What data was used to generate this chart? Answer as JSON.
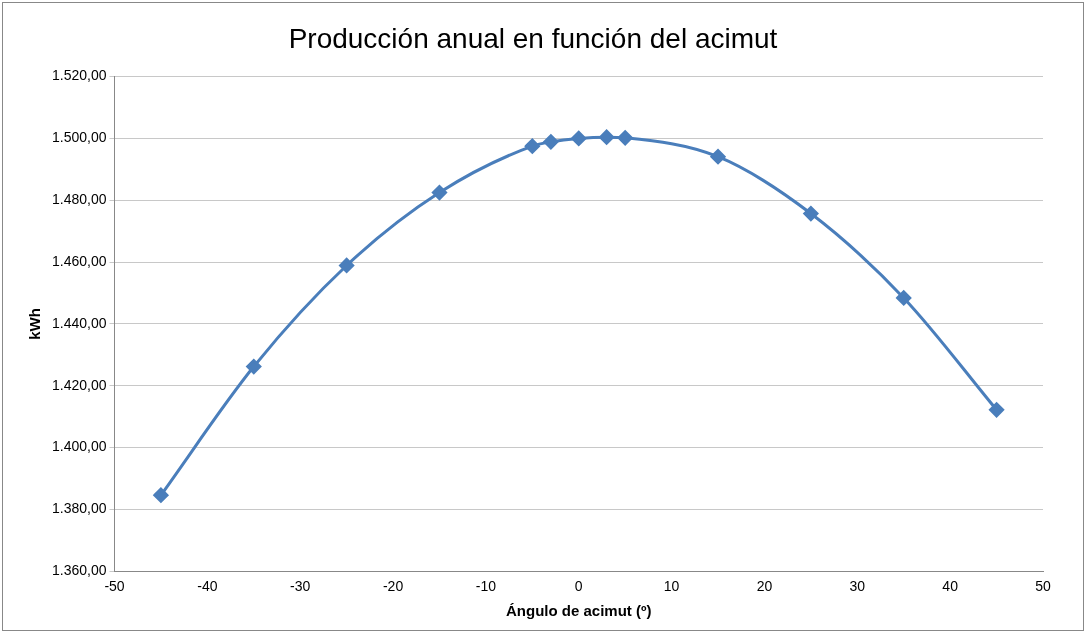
{
  "chart_data": {
    "type": "line",
    "title": "Producción anual en función del acimut",
    "xlabel": "Ángulo de acimut (º)",
    "ylabel": "kWh",
    "x": [
      -45,
      -35,
      -25,
      -15,
      -5,
      -3,
      0,
      3,
      5,
      15,
      25,
      35,
      45
    ],
    "series": [
      {
        "color": "#4a7ebb",
        "values": [
          1384.6,
          1426.2,
          1458.9,
          1482.5,
          1497.5,
          1498.9,
          1500.0,
          1500.4,
          1500.2,
          1494.1,
          1475.7,
          1448.4,
          1412.2
        ]
      }
    ],
    "xlim": [
      -50,
      50
    ],
    "xticks": [
      -50,
      -40,
      -30,
      -20,
      -10,
      0,
      10,
      20,
      30,
      40,
      50
    ],
    "ylim": [
      1360,
      1520
    ],
    "yticks": [
      {
        "value": 1360,
        "label": "1.360,00"
      },
      {
        "value": 1380,
        "label": "1.380,00"
      },
      {
        "value": 1400,
        "label": "1.400,00"
      },
      {
        "value": 1420,
        "label": "1.420,00"
      },
      {
        "value": 1440,
        "label": "1.440,00"
      },
      {
        "value": 1460,
        "label": "1.460,00"
      },
      {
        "value": 1480,
        "label": "1.480,00"
      },
      {
        "value": 1500,
        "label": "1.500,00"
      },
      {
        "value": 1520,
        "label": "1.520,00"
      }
    ],
    "grid": "y",
    "legend": false,
    "marker": "diamond",
    "line_style": "solid"
  }
}
